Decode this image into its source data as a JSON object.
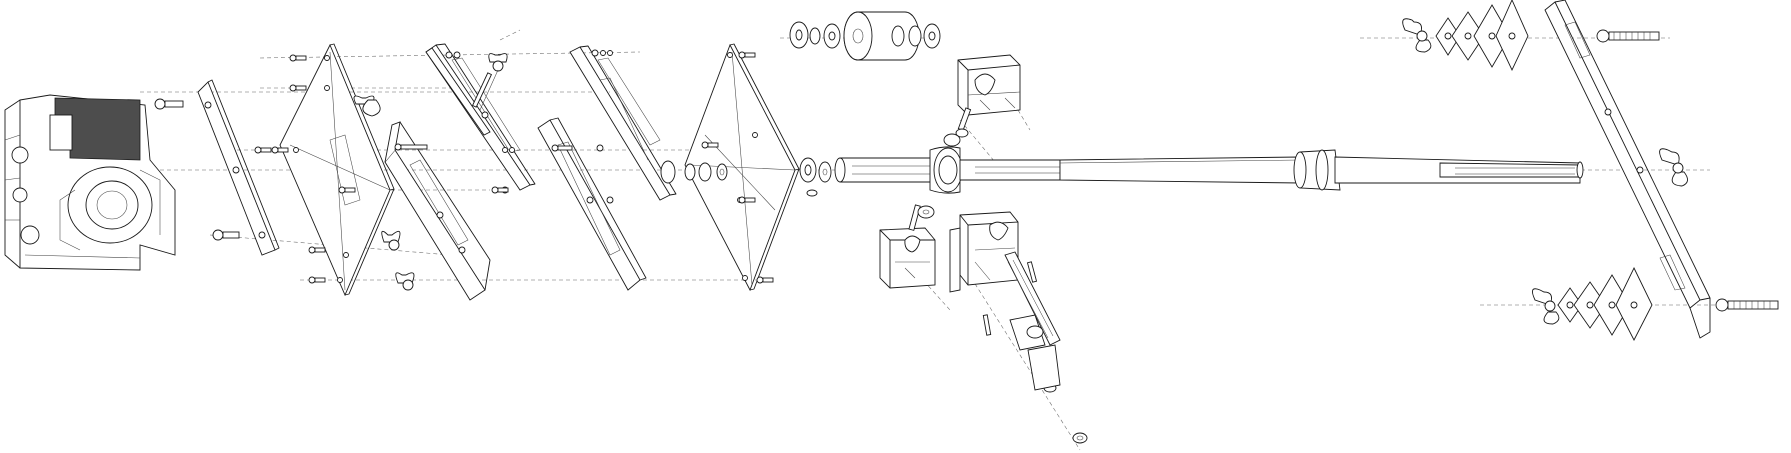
{
  "diagram": {
    "type": "exploded-assembly-line-drawing",
    "colors": {
      "line": "#1a1a1a",
      "fill": "#ffffff",
      "shade": "#4d4d4d",
      "centerline": "#666666"
    },
    "components": [
      "camera-body",
      "quick-release-plate",
      "mounting-plate-a",
      "angle-bracket-a",
      "sliding-plate-a",
      "angle-bracket-b",
      "mounting-plate-b",
      "washer-stack",
      "thumb-knob",
      "clamp-block-upper",
      "main-threaded-rod",
      "clamp-block-lower-left",
      "clamp-block-lower-right",
      "vertical-threaded-rod",
      "upper-diamond-spacers",
      "tall-side-bar",
      "lower-diamond-spacers"
    ]
  }
}
